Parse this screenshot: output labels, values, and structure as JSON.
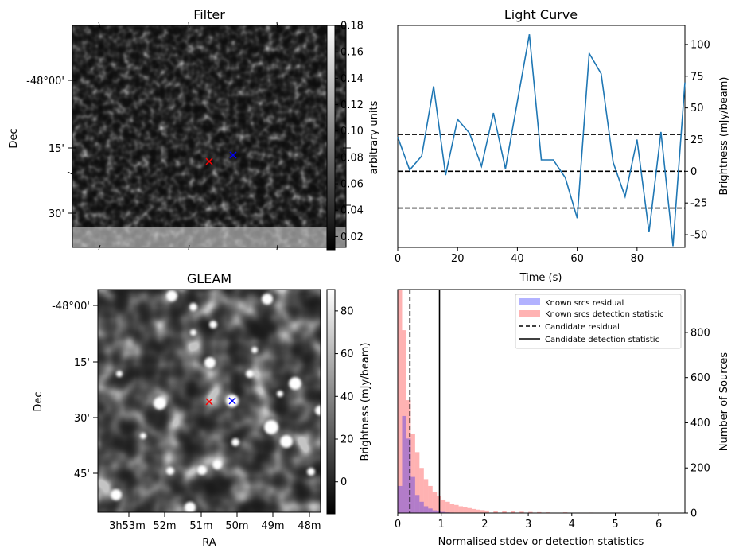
{
  "chart_data": [
    {
      "type": "heatmap",
      "title": "Filter",
      "ylabel": "Dec",
      "y_ticks": [
        "-48°00'",
        "15'",
        "30'"
      ],
      "colorbar": {
        "label": "arbitrary units",
        "range": [
          0.01,
          0.18
        ],
        "ticks": [
          "0.02",
          "0.04",
          "0.06",
          "0.08",
          "0.10",
          "0.12",
          "0.14",
          "0.16",
          "0.18"
        ]
      },
      "markers": [
        {
          "symbol": "x",
          "color": "#ff0000"
        },
        {
          "symbol": "x",
          "color": "#0000ff"
        }
      ]
    },
    {
      "type": "line",
      "title": "Light Curve",
      "xlabel": "Time (s)",
      "ylabel": "Brightness (mJy/beam)",
      "xlim": [
        0,
        96
      ],
      "ylim": [
        -60,
        115
      ],
      "x_ticks": [
        "0",
        "20",
        "40",
        "60",
        "80"
      ],
      "y_ticks": [
        "-50",
        "-25",
        "0",
        "25",
        "50",
        "75",
        "100"
      ],
      "x": [
        0,
        4,
        8,
        12,
        16,
        20,
        24,
        28,
        32,
        36,
        40,
        44,
        48,
        52,
        56,
        60,
        64,
        68,
        72,
        76,
        80,
        84,
        88,
        92,
        96
      ],
      "series": [
        {
          "values": [
            27,
            1,
            12,
            67,
            -3,
            41,
            30,
            4,
            46,
            2,
            55,
            108,
            9,
            9,
            -5,
            -37,
            93,
            77,
            7,
            -20,
            25,
            -48,
            31,
            -59,
            70
          ],
          "color": "#1f77b4"
        }
      ],
      "hlines": [
        29,
        0,
        -29
      ]
    },
    {
      "type": "heatmap",
      "title": "GLEAM",
      "xlabel": "RA",
      "ylabel": "Dec",
      "x_ticks": [
        "3h53m",
        "52m",
        "51m",
        "50m",
        "49m",
        "48m"
      ],
      "y_ticks": [
        "-48°00'",
        "15'",
        "30'",
        "45'"
      ],
      "colorbar": {
        "label": "Brightness (mJy/beam)",
        "range": [
          -15,
          90
        ],
        "ticks": [
          "0",
          "20",
          "40",
          "60",
          "80"
        ]
      },
      "markers": [
        {
          "symbol": "x",
          "color": "#ff0000"
        },
        {
          "symbol": "x",
          "color": "#0000ff"
        }
      ]
    },
    {
      "type": "bar",
      "xlabel": "Normalised stdev or detection statistics",
      "ylabel": "Number of Sources",
      "xlim": [
        0,
        6.6
      ],
      "ylim": [
        0,
        990
      ],
      "x_ticks": [
        "0",
        "1",
        "2",
        "3",
        "4",
        "5",
        "6"
      ],
      "y_ticks": [
        "0",
        "200",
        "400",
        "600",
        "800"
      ],
      "bin_width": 0.1,
      "series": [
        {
          "name": "Known srcs residual",
          "color": "#0000ff",
          "alpha": 0.3,
          "bin_starts": [
            0.0,
            0.1,
            0.2,
            0.3,
            0.4,
            0.5,
            0.6,
            0.7,
            0.8,
            0.9,
            1.0,
            1.1,
            1.2
          ],
          "values": [
            120,
            430,
            330,
            160,
            80,
            50,
            30,
            20,
            12,
            8,
            5,
            3,
            2
          ]
        },
        {
          "name": "Known srcs detection statistic",
          "color": "#ff0000",
          "alpha": 0.3,
          "bin_starts": [
            0.0,
            0.1,
            0.2,
            0.3,
            0.4,
            0.5,
            0.6,
            0.7,
            0.8,
            0.9,
            1.0,
            1.1,
            1.2,
            1.3,
            1.4,
            1.5,
            1.6,
            1.7,
            1.8,
            1.9,
            2.0,
            2.2,
            2.4,
            2.6,
            2.8,
            3.0,
            3.2,
            3.4,
            3.8,
            4.4,
            5.0,
            6.4
          ],
          "values": [
            990,
            810,
            500,
            350,
            270,
            200,
            150,
            120,
            95,
            75,
            60,
            50,
            42,
            36,
            30,
            26,
            22,
            18,
            15,
            13,
            11,
            9,
            8,
            7,
            6,
            5,
            4,
            3,
            3,
            2,
            2,
            1
          ]
        }
      ],
      "vlines": [
        {
          "name": "Candidate residual",
          "x": 0.28,
          "style": "dashed"
        },
        {
          "name": "Candidate detection statistic",
          "x": 0.96,
          "style": "solid"
        }
      ],
      "legend": "top-right"
    }
  ]
}
